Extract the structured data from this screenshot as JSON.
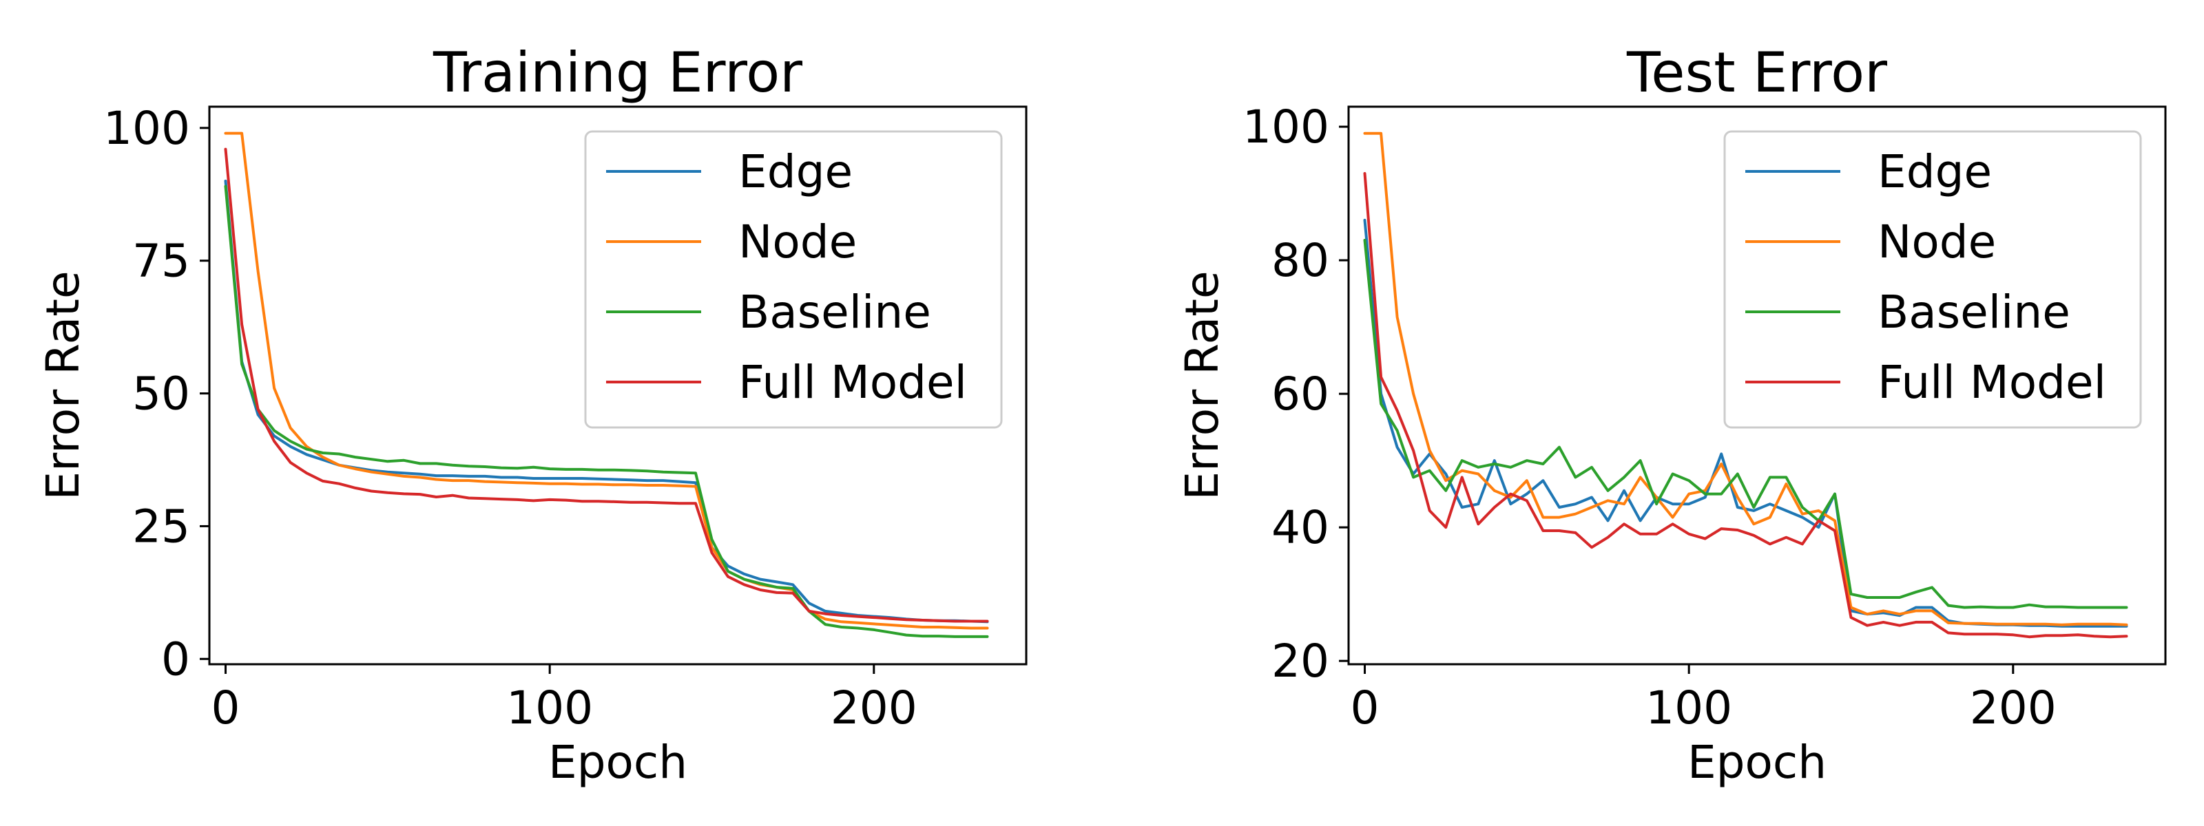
{
  "chart_data": [
    {
      "type": "line",
      "title": "Training Error",
      "xlabel": "Epoch",
      "ylabel": "Error Rate",
      "xlim": [
        -5,
        247
      ],
      "ylim": [
        -1,
        104
      ],
      "xticks": [
        0,
        100,
        200
      ],
      "yticks": [
        0,
        25,
        50,
        75,
        100
      ],
      "legend_position": "upper-right",
      "grid": false,
      "series": [
        {
          "name": "Edge",
          "color": "#1f77b4",
          "x": [
            0,
            5,
            10,
            15,
            20,
            25,
            30,
            35,
            40,
            45,
            50,
            55,
            60,
            65,
            70,
            75,
            80,
            85,
            90,
            95,
            100,
            105,
            110,
            115,
            120,
            125,
            130,
            135,
            140,
            145,
            150,
            155,
            160,
            165,
            170,
            175,
            180,
            185,
            190,
            195,
            200,
            205,
            210,
            215,
            220,
            225,
            230,
            235
          ],
          "y": [
            90,
            56,
            46,
            42,
            40,
            38.5,
            37.5,
            36.5,
            36,
            35.5,
            35.2,
            35,
            34.8,
            34.5,
            34.5,
            34.4,
            34.4,
            34.2,
            34.2,
            34,
            34,
            34,
            34,
            33.9,
            33.8,
            33.7,
            33.6,
            33.6,
            33.4,
            33.2,
            21,
            17.5,
            16,
            15,
            14.5,
            14,
            10.5,
            9,
            8.6,
            8.2,
            8,
            7.8,
            7.5,
            7.3,
            7.2,
            7.2,
            7.1,
            7
          ]
        },
        {
          "name": "Node",
          "color": "#ff7f0e",
          "x": [
            0,
            5,
            10,
            15,
            20,
            25,
            30,
            35,
            40,
            45,
            50,
            55,
            60,
            65,
            70,
            75,
            80,
            85,
            90,
            95,
            100,
            105,
            110,
            115,
            120,
            125,
            130,
            135,
            140,
            145,
            150,
            155,
            160,
            165,
            170,
            175,
            180,
            185,
            190,
            195,
            200,
            205,
            210,
            215,
            220,
            225,
            230,
            235
          ],
          "y": [
            99,
            99,
            73,
            51,
            43.5,
            40,
            38,
            36.5,
            35.8,
            35.2,
            34.8,
            34.4,
            34.2,
            33.8,
            33.6,
            33.6,
            33.4,
            33.3,
            33.2,
            33.1,
            33,
            33,
            32.9,
            32.9,
            32.8,
            32.8,
            32.7,
            32.7,
            32.6,
            32.5,
            21,
            16.5,
            15,
            14,
            13.5,
            13,
            9,
            7.5,
            7,
            6.8,
            6.6,
            6.4,
            6.2,
            6,
            6,
            5.9,
            5.8,
            5.8
          ]
        },
        {
          "name": "Baseline",
          "color": "#2ca02c",
          "x": [
            0,
            5,
            10,
            15,
            20,
            25,
            30,
            35,
            40,
            45,
            50,
            55,
            60,
            65,
            70,
            75,
            80,
            85,
            90,
            95,
            100,
            105,
            110,
            115,
            120,
            125,
            130,
            135,
            140,
            145,
            150,
            155,
            160,
            165,
            170,
            175,
            180,
            185,
            190,
            195,
            200,
            205,
            210,
            215,
            220,
            225,
            230,
            235
          ],
          "y": [
            89,
            55.5,
            47,
            43,
            41,
            39.5,
            38.8,
            38.6,
            38,
            37.6,
            37.2,
            37.4,
            36.8,
            36.8,
            36.5,
            36.3,
            36.2,
            36,
            35.9,
            36.1,
            35.8,
            35.7,
            35.7,
            35.6,
            35.6,
            35.5,
            35.4,
            35.2,
            35.1,
            35,
            22.5,
            16.5,
            15,
            14.2,
            13.5,
            13.3,
            9,
            6.5,
            6,
            5.8,
            5.5,
            5,
            4.5,
            4.3,
            4.3,
            4.2,
            4.2,
            4.2
          ]
        },
        {
          "name": "Full Model",
          "color": "#d62728",
          "x": [
            0,
            5,
            10,
            15,
            20,
            25,
            30,
            35,
            40,
            45,
            50,
            55,
            60,
            65,
            70,
            75,
            80,
            85,
            90,
            95,
            100,
            105,
            110,
            115,
            120,
            125,
            130,
            135,
            140,
            145,
            150,
            155,
            160,
            165,
            170,
            175,
            180,
            185,
            190,
            195,
            200,
            205,
            210,
            215,
            220,
            225,
            230,
            235
          ],
          "y": [
            96,
            63,
            47,
            41,
            37,
            35,
            33.5,
            33,
            32.2,
            31.6,
            31.3,
            31.1,
            31,
            30.5,
            30.8,
            30.3,
            30.2,
            30.1,
            30,
            29.8,
            30,
            29.9,
            29.7,
            29.7,
            29.6,
            29.5,
            29.5,
            29.4,
            29.3,
            29.3,
            20,
            15.5,
            14,
            13,
            12.5,
            12.4,
            9,
            8.5,
            8.2,
            8,
            7.8,
            7.6,
            7.4,
            7.3,
            7.2,
            7.1,
            7.1,
            7.1
          ]
        }
      ]
    },
    {
      "type": "line",
      "title": "Test Error",
      "xlabel": "Epoch",
      "ylabel": "Error Rate",
      "xlim": [
        -5,
        247
      ],
      "ylim": [
        19.5,
        103
      ],
      "xticks": [
        0,
        100,
        200
      ],
      "yticks": [
        20,
        40,
        60,
        80,
        100
      ],
      "legend_position": "upper-right",
      "grid": false,
      "series": [
        {
          "name": "Edge",
          "color": "#1f77b4",
          "x": [
            0,
            5,
            10,
            15,
            20,
            25,
            30,
            35,
            40,
            45,
            50,
            55,
            60,
            65,
            70,
            75,
            80,
            85,
            90,
            95,
            100,
            105,
            110,
            115,
            120,
            125,
            130,
            135,
            140,
            145,
            150,
            155,
            160,
            165,
            170,
            175,
            180,
            185,
            190,
            195,
            200,
            205,
            210,
            215,
            220,
            225,
            230,
            235
          ],
          "y": [
            86,
            60,
            52,
            48,
            51,
            48,
            43,
            43.5,
            50,
            43.5,
            45,
            47,
            43,
            43.5,
            44.5,
            41,
            45.5,
            41,
            44.5,
            43.5,
            43.5,
            44.5,
            51,
            43,
            42.5,
            43.5,
            42.5,
            41.5,
            40,
            45,
            27.5,
            27,
            27.2,
            26.8,
            28,
            28,
            26,
            25.6,
            25.5,
            25.4,
            25.4,
            25.3,
            25.3,
            25.2,
            25.2,
            25.2,
            25.2,
            25.2
          ]
        },
        {
          "name": "Node",
          "color": "#ff7f0e",
          "x": [
            0,
            5,
            10,
            15,
            20,
            25,
            30,
            35,
            40,
            45,
            50,
            55,
            60,
            65,
            70,
            75,
            80,
            85,
            90,
            95,
            100,
            105,
            110,
            115,
            120,
            125,
            130,
            135,
            140,
            145,
            150,
            155,
            160,
            165,
            170,
            175,
            180,
            185,
            190,
            195,
            200,
            205,
            210,
            215,
            220,
            225,
            230,
            235
          ],
          "y": [
            99,
            99,
            71.5,
            60,
            51.5,
            47,
            48.5,
            48,
            45.5,
            44.5,
            47,
            41.5,
            41.5,
            42,
            43,
            44,
            43.5,
            47.5,
            44.5,
            41.5,
            45,
            45.5,
            49.5,
            44.5,
            40.5,
            41.5,
            46.5,
            42,
            42.5,
            41,
            28,
            27,
            27.5,
            27,
            27.5,
            27.5,
            25.7,
            25.6,
            25.6,
            25.5,
            25.5,
            25.5,
            25.5,
            25.4,
            25.5,
            25.5,
            25.5,
            25.4
          ]
        },
        {
          "name": "Baseline",
          "color": "#2ca02c",
          "x": [
            0,
            5,
            10,
            15,
            20,
            25,
            30,
            35,
            40,
            45,
            50,
            55,
            60,
            65,
            70,
            75,
            80,
            85,
            90,
            95,
            100,
            105,
            110,
            115,
            120,
            125,
            130,
            135,
            140,
            145,
            150,
            155,
            160,
            165,
            170,
            175,
            180,
            185,
            190,
            195,
            200,
            205,
            210,
            215,
            220,
            225,
            230,
            235
          ],
          "y": [
            83,
            58.5,
            54.5,
            47.5,
            48.5,
            45.5,
            50,
            49,
            49.5,
            49,
            50,
            49.5,
            52,
            47.5,
            49,
            45.5,
            47.5,
            50,
            43.5,
            48,
            47,
            45,
            45,
            48,
            43,
            47.5,
            47.5,
            43,
            41,
            45,
            30,
            29.5,
            29.5,
            29.5,
            30.3,
            31,
            28.3,
            28,
            28.1,
            28,
            28,
            28.4,
            28.1,
            28.1,
            28,
            28,
            28,
            28
          ]
        },
        {
          "name": "Full Model",
          "color": "#d62728",
          "x": [
            0,
            5,
            10,
            15,
            20,
            25,
            30,
            35,
            40,
            45,
            50,
            55,
            60,
            65,
            70,
            75,
            80,
            85,
            90,
            95,
            100,
            105,
            110,
            115,
            120,
            125,
            130,
            135,
            140,
            145,
            150,
            155,
            160,
            165,
            170,
            175,
            180,
            185,
            190,
            195,
            200,
            205,
            210,
            215,
            220,
            225,
            230,
            235
          ],
          "y": [
            93,
            62.5,
            57.5,
            51.5,
            42.5,
            40,
            47.5,
            40.5,
            43,
            45,
            44,
            39.5,
            39.5,
            39.2,
            37,
            38.5,
            40.5,
            39,
            39,
            40.5,
            39,
            38.3,
            39.8,
            39.6,
            38.8,
            37.5,
            38.5,
            37.5,
            41,
            39.5,
            26.5,
            25.3,
            25.8,
            25.3,
            25.8,
            25.8,
            24.2,
            24,
            24,
            24,
            23.9,
            23.6,
            23.8,
            23.8,
            23.9,
            23.7,
            23.6,
            23.7
          ]
        }
      ]
    }
  ]
}
